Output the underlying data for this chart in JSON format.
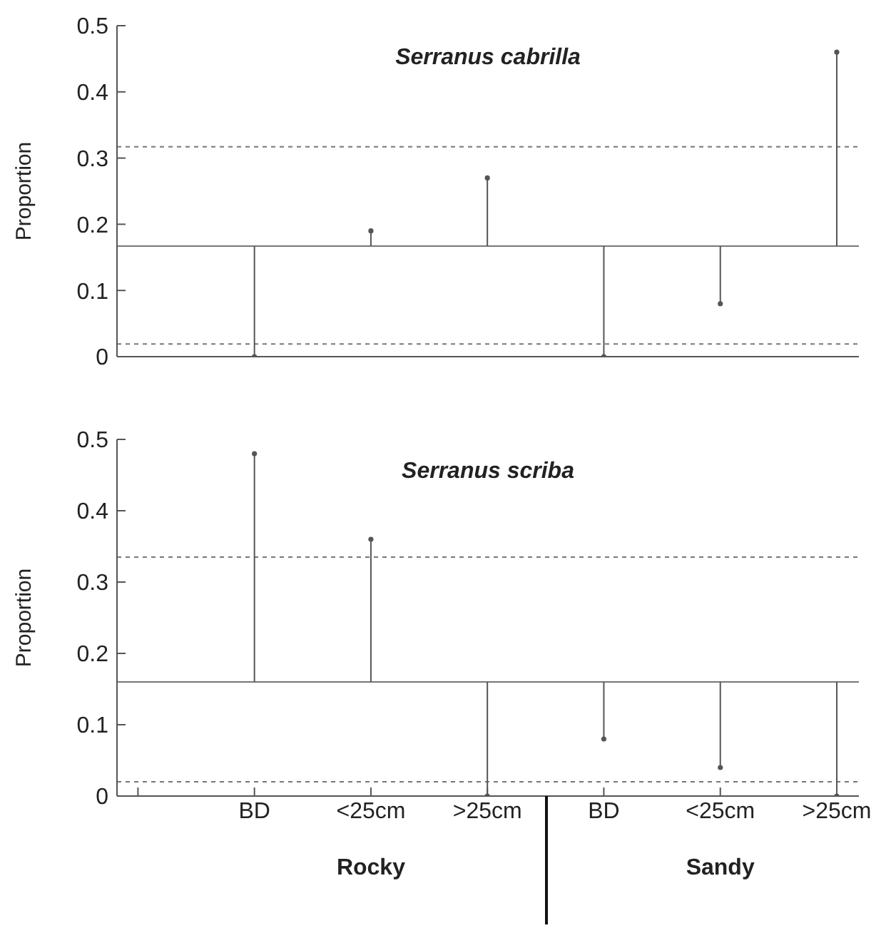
{
  "chart_data": [
    {
      "type": "scatter",
      "title": "Serranus cabrilla",
      "ylabel": "Proportion",
      "categories": [
        null,
        null,
        null,
        null,
        null,
        null,
        null
      ],
      "values": [
        null,
        0,
        0.19,
        0.27,
        0,
        0.08,
        0.46
      ],
      "errors": [
        null,
        [
          0,
          0.167
        ],
        [
          0.167,
          0.19
        ],
        [
          0.167,
          0.27
        ],
        [
          0,
          0.167
        ],
        [
          0.08,
          0.167
        ],
        [
          0.167,
          0.46
        ]
      ],
      "color": "#555555",
      "marker": "circle",
      "ylim": [
        0,
        0.5
      ],
      "yticks": [
        0,
        0.1,
        0.2,
        0.3,
        0.4,
        0.5
      ],
      "tick_labels": "y",
      "ref_lines": [
        {
          "axis": "y",
          "value": 0.167,
          "line_style": "solid",
          "color": "#777777"
        },
        {
          "axis": "y",
          "value": 0.317,
          "line_style": "dashed",
          "color": "#777777"
        },
        {
          "axis": "y",
          "value": 0.019,
          "line_style": "dashed",
          "color": "#777777"
        }
      ]
    },
    {
      "type": "scatter",
      "title": "Serranus scriba",
      "ylabel": "Proportion",
      "categories": [
        null,
        "BD",
        "<25cm",
        ">25cm",
        "BD",
        "<25cm",
        ">25cm"
      ],
      "values": [
        null,
        0.48,
        0.36,
        0,
        0.08,
        0.04,
        0
      ],
      "errors": [
        null,
        [
          0.16,
          0.48
        ],
        [
          0.16,
          0.36
        ],
        [
          0,
          0.16
        ],
        [
          0.08,
          0.16
        ],
        [
          0.04,
          0.16
        ],
        [
          0,
          0.16
        ]
      ],
      "color": "#555555",
      "marker": "circle",
      "ylim": [
        0,
        0.5
      ],
      "yticks": [
        0,
        0.1,
        0.2,
        0.3,
        0.4,
        0.5
      ],
      "ref_lines": [
        {
          "axis": "y",
          "value": 0.16,
          "line_style": "solid",
          "color": "#777777"
        },
        {
          "axis": "y",
          "value": 0.335,
          "line_style": "dashed",
          "color": "#777777"
        },
        {
          "axis": "y",
          "value": 0.02,
          "line_style": "dashed",
          "color": "#777777"
        }
      ],
      "annotations": [
        "Rocky",
        "Sandy"
      ]
    }
  ]
}
